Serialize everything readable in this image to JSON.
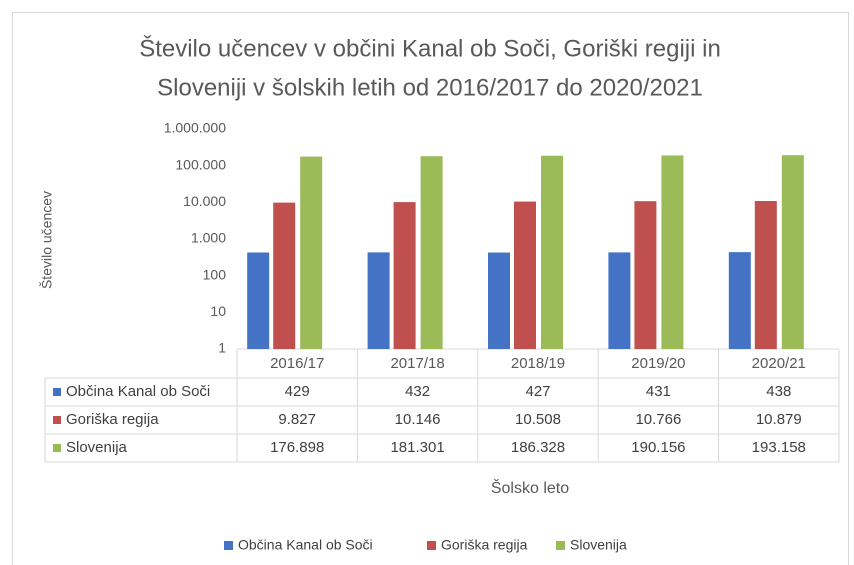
{
  "chart_data": {
    "type": "bar",
    "title": [
      "Število učencev v občini Kanal ob Soči, Goriški regiji in",
      "Sloveniji v šolskih letih od 2016/2017 do 2020/2021"
    ],
    "y_label": "Število učencev",
    "x_label": "Šolsko leto",
    "categories": [
      "2016/17",
      "2017/18",
      "2018/19",
      "2019/20",
      "2020/21"
    ],
    "series": [
      {
        "name": "Občina Kanal ob Soči",
        "color": "#4472c4",
        "values": [
          429,
          432,
          427,
          431,
          438
        ]
      },
      {
        "name": "Goriška regija",
        "color": "#c0504d",
        "values": [
          9827,
          10146,
          10508,
          10766,
          10879
        ],
        "value_labels": [
          "9.827",
          "10.146",
          "10.508",
          "10.766",
          "10.879"
        ]
      },
      {
        "name": "Slovenija",
        "color": "#9bbb59",
        "values": [
          176898,
          181301,
          186328,
          190156,
          193158
        ],
        "value_labels": [
          "176.898",
          "181.301",
          "186.328",
          "190.156",
          "193.158"
        ]
      }
    ],
    "log_scale": true,
    "ylim": [
      1,
      1000000
    ],
    "yticks": [
      1,
      10,
      100,
      {
        "value": 1000,
        "label": "1.000"
      },
      {
        "value": 10000,
        "label": "10.000"
      },
      {
        "value": 100000,
        "label": "100.000"
      },
      {
        "value": 1000000,
        "label": "1.000.000"
      }
    ],
    "grid": false,
    "legend": "bottom"
  }
}
